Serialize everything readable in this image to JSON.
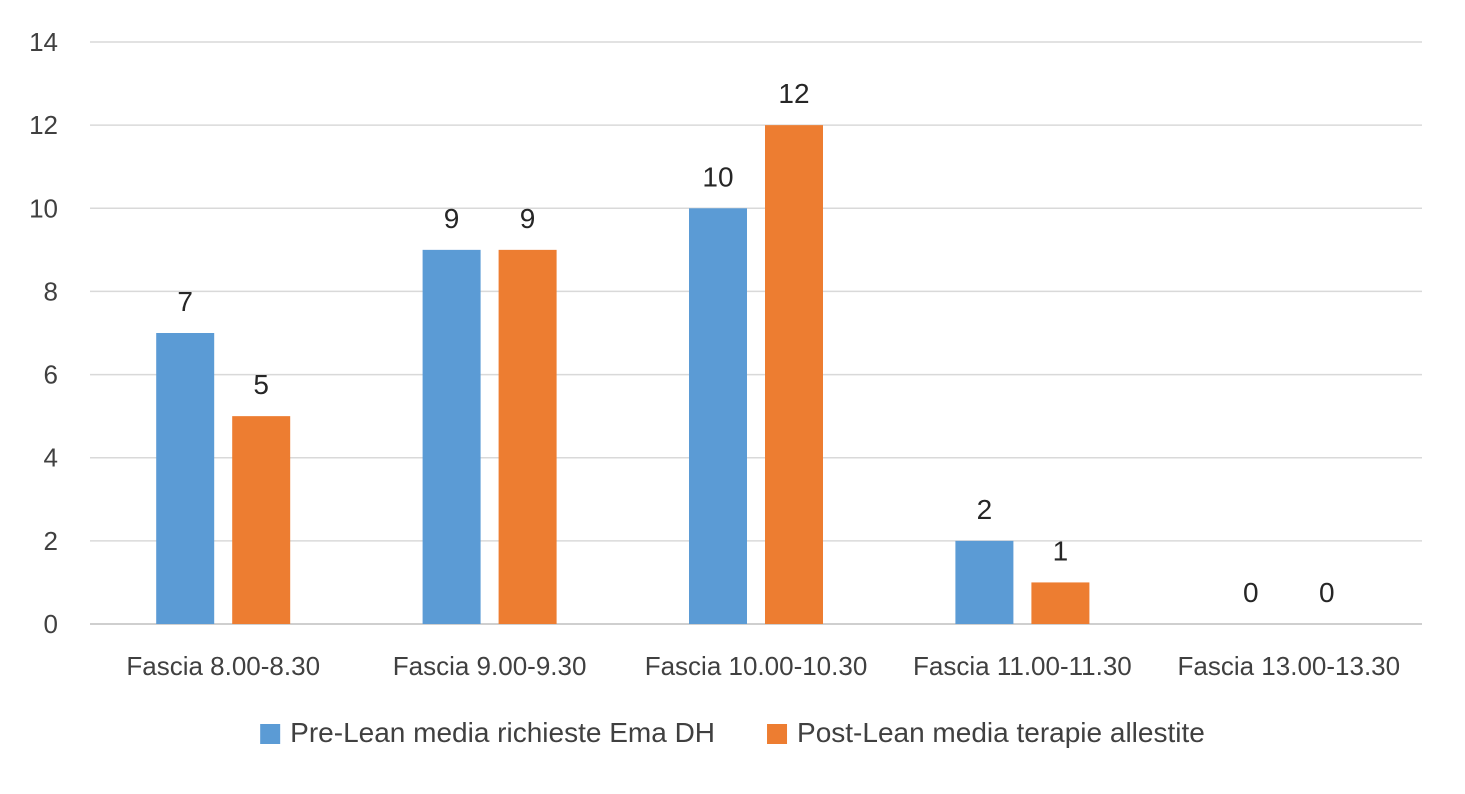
{
  "chart_data": {
    "type": "bar",
    "title": "",
    "xlabel": "",
    "ylabel": "",
    "ylim": [
      0,
      14
    ],
    "yticks": [
      0,
      2,
      4,
      6,
      8,
      10,
      12,
      14
    ],
    "grid": true,
    "legend_position": "bottom",
    "categories": [
      "Fascia 8.00-8.30",
      "Fascia 9.00-9.30",
      "Fascia 10.00-10.30",
      "Fascia 11.00-11.30",
      "Fascia 13.00-13.30"
    ],
    "series": [
      {
        "name": "Pre-Lean media richieste Ema DH",
        "color": "#5b9bd5",
        "values": [
          7,
          9,
          10,
          2,
          0
        ]
      },
      {
        "name": "Post-Lean media terapie allestite",
        "color": "#ed7d31",
        "values": [
          5,
          9,
          12,
          1,
          0
        ]
      }
    ]
  }
}
